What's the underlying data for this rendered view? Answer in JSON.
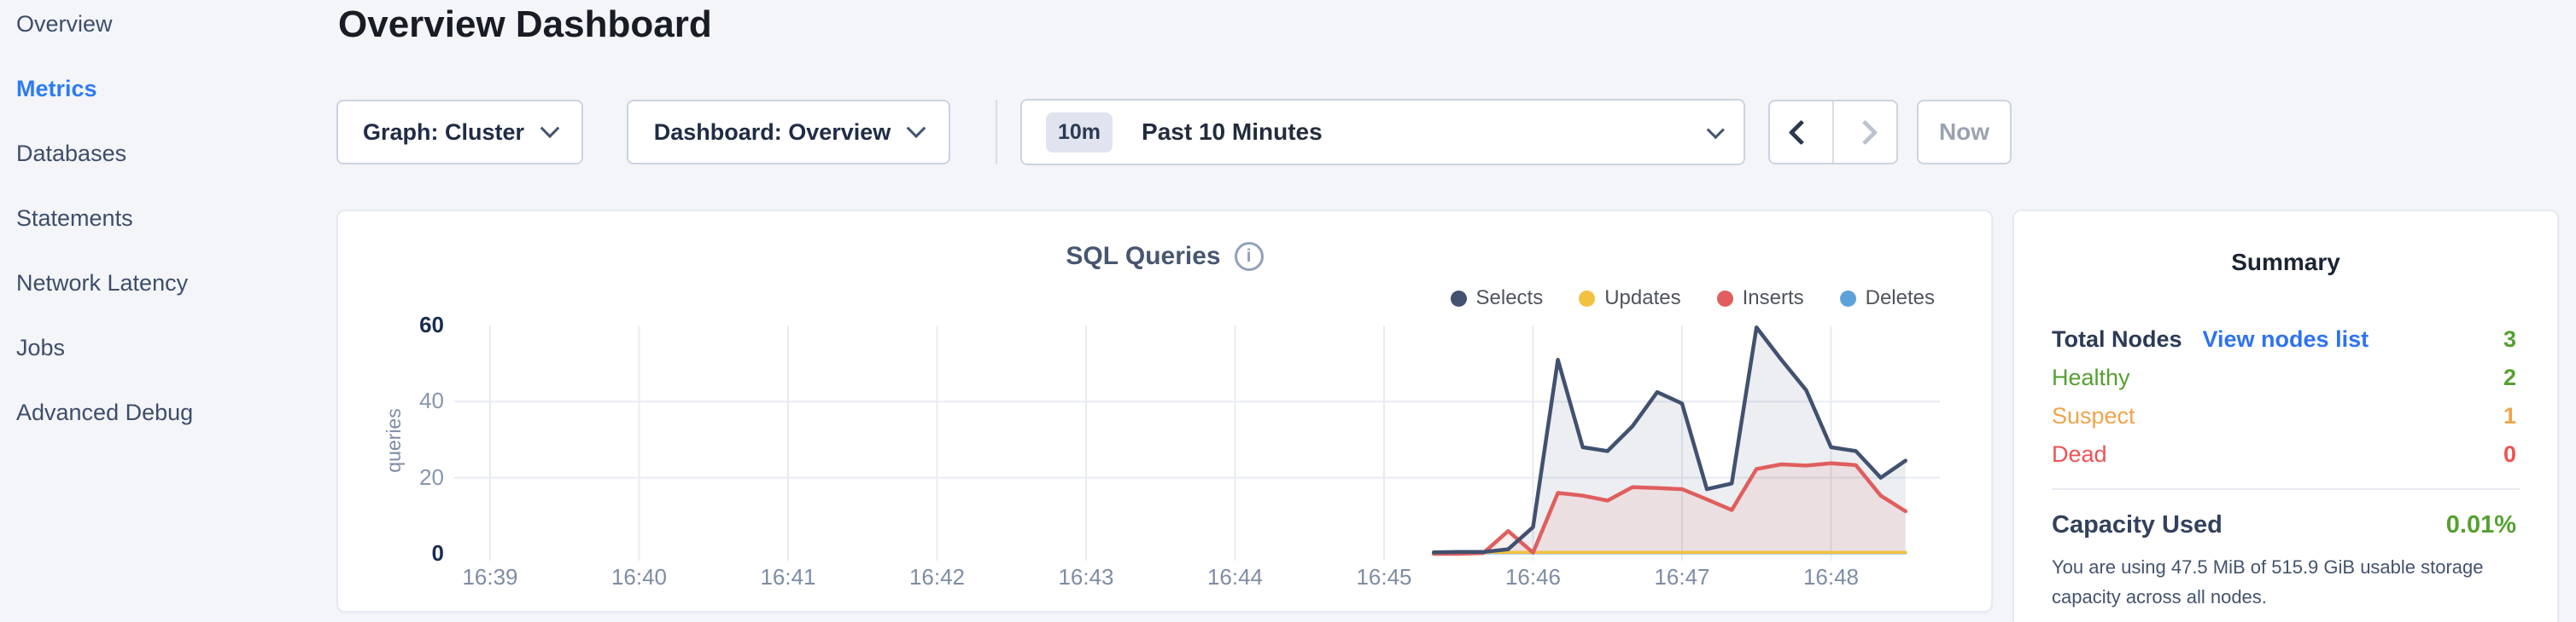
{
  "colors": {
    "accent_blue": "#2e7cf0",
    "link_blue": "#2e73f0",
    "green": "#56a031",
    "orange": "#f0a44a",
    "red": "#ee5253",
    "page_bg": "#f4f5f9",
    "grid_line": "#e8ebf2"
  },
  "sidebar": {
    "items": [
      {
        "label": "Overview",
        "active": false
      },
      {
        "label": "Metrics",
        "active": true
      },
      {
        "label": "Databases",
        "active": false
      },
      {
        "label": "Statements",
        "active": false
      },
      {
        "label": "Network Latency",
        "active": false
      },
      {
        "label": "Jobs",
        "active": false
      },
      {
        "label": "Advanced Debug",
        "active": false
      }
    ]
  },
  "header": {
    "title": "Overview Dashboard"
  },
  "controls": {
    "graph_dropdown": {
      "label": "Graph: Cluster"
    },
    "dashboard_dropdown": {
      "label": "Dashboard: Overview"
    },
    "time_picker": {
      "badge": "10m",
      "label": "Past 10 Minutes"
    },
    "now_button": "Now"
  },
  "chart": {
    "title": "SQL Queries",
    "info_icon": "i"
  },
  "chart_data": {
    "type": "area",
    "title": "SQL Queries",
    "xlabel": "",
    "ylabel": "queries",
    "ylim": [
      0,
      60
    ],
    "yticks": [
      60,
      40,
      20,
      0
    ],
    "xticks": [
      "16:39",
      "16:40",
      "16:41",
      "16:42",
      "16:43",
      "16:44",
      "16:45",
      "16:46",
      "16:47",
      "16:48"
    ],
    "grid": "on",
    "legend_position": "top-right",
    "x_times": [
      "16:45:20",
      "16:45:30",
      "16:45:40",
      "16:45:50",
      "16:46:00",
      "16:46:10",
      "16:46:20",
      "16:46:30",
      "16:46:40",
      "16:46:50",
      "16:47:00",
      "16:47:10",
      "16:47:20",
      "16:47:30",
      "16:47:40",
      "16:47:50",
      "16:48:00",
      "16:48:10",
      "16:48:20",
      "16:48:30"
    ],
    "series": [
      {
        "name": "Selects",
        "color": "#41516f",
        "fill": "rgba(72,88,116,0.10)",
        "values": [
          0.4,
          0.5,
          0.5,
          1.2,
          7,
          51,
          28,
          27,
          33.5,
          42.5,
          39.5,
          17,
          18.5,
          59.5,
          51,
          43,
          28,
          27,
          20,
          24.5
        ]
      },
      {
        "name": "Updates",
        "color": "#f2c13e",
        "fill": null,
        "values": [
          0.4,
          0.4,
          0.4,
          0.4,
          0.4,
          0.4,
          0.4,
          0.4,
          0.4,
          0.4,
          0.4,
          0.4,
          0.4,
          0.4,
          0.4,
          0.4,
          0.4,
          0.4,
          0.4,
          0.4
        ]
      },
      {
        "name": "Inserts",
        "color": "#e05e5e",
        "fill": "rgba(224,94,94,0.10)",
        "values": [
          0,
          0,
          0.2,
          6,
          0.3,
          16,
          15.3,
          14,
          17.5,
          17.3,
          17,
          14.3,
          11.5,
          22.3,
          23.5,
          23.2,
          23.8,
          23.3,
          15.3,
          11.2
        ]
      },
      {
        "name": "Deletes",
        "color": "#5ca2d8",
        "fill": null,
        "values": [
          0.3,
          0.3,
          0.3,
          0.3,
          0.3,
          0.3,
          0.3,
          0.3,
          0.3,
          0.3,
          0.3,
          0.3,
          0.3,
          0.3,
          0.3,
          0.3,
          0.3,
          0.3,
          0.3,
          0.3
        ]
      }
    ]
  },
  "summary": {
    "title": "Summary",
    "rows": [
      {
        "label": "Total Nodes",
        "link": "View nodes list",
        "value": "3",
        "label_color": "#2c3a55",
        "value_color": "#56a031"
      },
      {
        "label": "Healthy",
        "value": "2",
        "label_color": "#56a031",
        "value_color": "#56a031"
      },
      {
        "label": "Suspect",
        "value": "1",
        "label_color": "#f0a44a",
        "value_color": "#f0a44a"
      },
      {
        "label": "Dead",
        "value": "0",
        "label_color": "#ee5253",
        "value_color": "#ee5253"
      }
    ],
    "capacity": {
      "label": "Capacity Used",
      "value": "0.01%",
      "description": "You are using 47.5 MiB of 515.9 GiB usable storage capacity across all nodes."
    }
  }
}
